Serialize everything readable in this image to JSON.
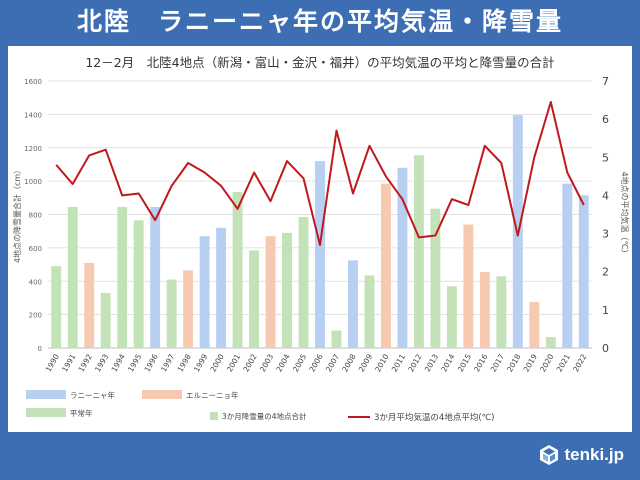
{
  "header": {
    "title": "北陸　ラニーニャ年の平均気温・降雪量"
  },
  "brand": {
    "name": "tenki.jp"
  },
  "chart_data": {
    "type": "bar",
    "title": "12－2月　北陸4地点（新潟・富山・金沢・福井）の平均気温の平均と降雪量の合計",
    "ylabel_left": "4地点の降雪量合計（cm）",
    "ylabel_right": "4地点の平均気温（℃）",
    "ylim_left": [
      0,
      1600
    ],
    "yticks_left": [
      0,
      200,
      400,
      600,
      800,
      1000,
      1200,
      1400,
      1600
    ],
    "ylim_right": [
      0,
      7
    ],
    "yticks_right": [
      0,
      1,
      2,
      3,
      4,
      5,
      6,
      7
    ],
    "categories": [
      "1990",
      "1991",
      "1992",
      "1993",
      "1994",
      "1995",
      "1996",
      "1997",
      "1998",
      "1999",
      "2000",
      "2001",
      "2002",
      "2003",
      "2004",
      "2005",
      "2006",
      "2007",
      "2008",
      "2009",
      "2010",
      "2011",
      "2012",
      "2013",
      "2014",
      "2015",
      "2016",
      "2017",
      "2018",
      "2019",
      "2020",
      "2021",
      "2022"
    ],
    "snowfall": [
      490,
      845,
      510,
      330,
      845,
      765,
      845,
      410,
      465,
      670,
      720,
      935,
      585,
      670,
      690,
      785,
      1120,
      105,
      525,
      435,
      985,
      1080,
      1155,
      835,
      370,
      740,
      455,
      430,
      1395,
      275,
      65,
      985,
      915
    ],
    "year_type": [
      "normal",
      "normal",
      "elnino",
      "normal",
      "normal",
      "normal",
      "lanina",
      "normal",
      "elnino",
      "lanina",
      "lanina",
      "normal",
      "normal",
      "elnino",
      "normal",
      "normal",
      "lanina",
      "normal",
      "lanina",
      "normal",
      "elnino",
      "lanina",
      "normal",
      "normal",
      "normal",
      "elnino",
      "elnino",
      "normal",
      "lanina",
      "elnino",
      "normal",
      "lanina",
      "lanina"
    ],
    "temperature": [
      4.8,
      4.3,
      5.05,
      5.2,
      4.0,
      4.05,
      3.35,
      4.25,
      4.85,
      4.6,
      4.25,
      3.65,
      4.6,
      3.85,
      4.9,
      4.45,
      2.7,
      5.7,
      4.05,
      5.3,
      4.5,
      3.9,
      2.9,
      2.95,
      3.9,
      3.75,
      5.3,
      4.85,
      2.95,
      5.0,
      6.45,
      4.6,
      3.75
    ],
    "colors": {
      "lanina": "#b7cff0",
      "elnino": "#f7c9b0",
      "normal": "#c3e2b7",
      "line": "#c0181f"
    },
    "legend": {
      "lanina": "ラニーニャ年",
      "elnino": "エルニーニョ年",
      "normal": "平常年",
      "snow_series": "3か月降雪量の4地点合計",
      "temp_series": "3か月平均気温の4地点平均(℃)"
    },
    "grid": true
  }
}
